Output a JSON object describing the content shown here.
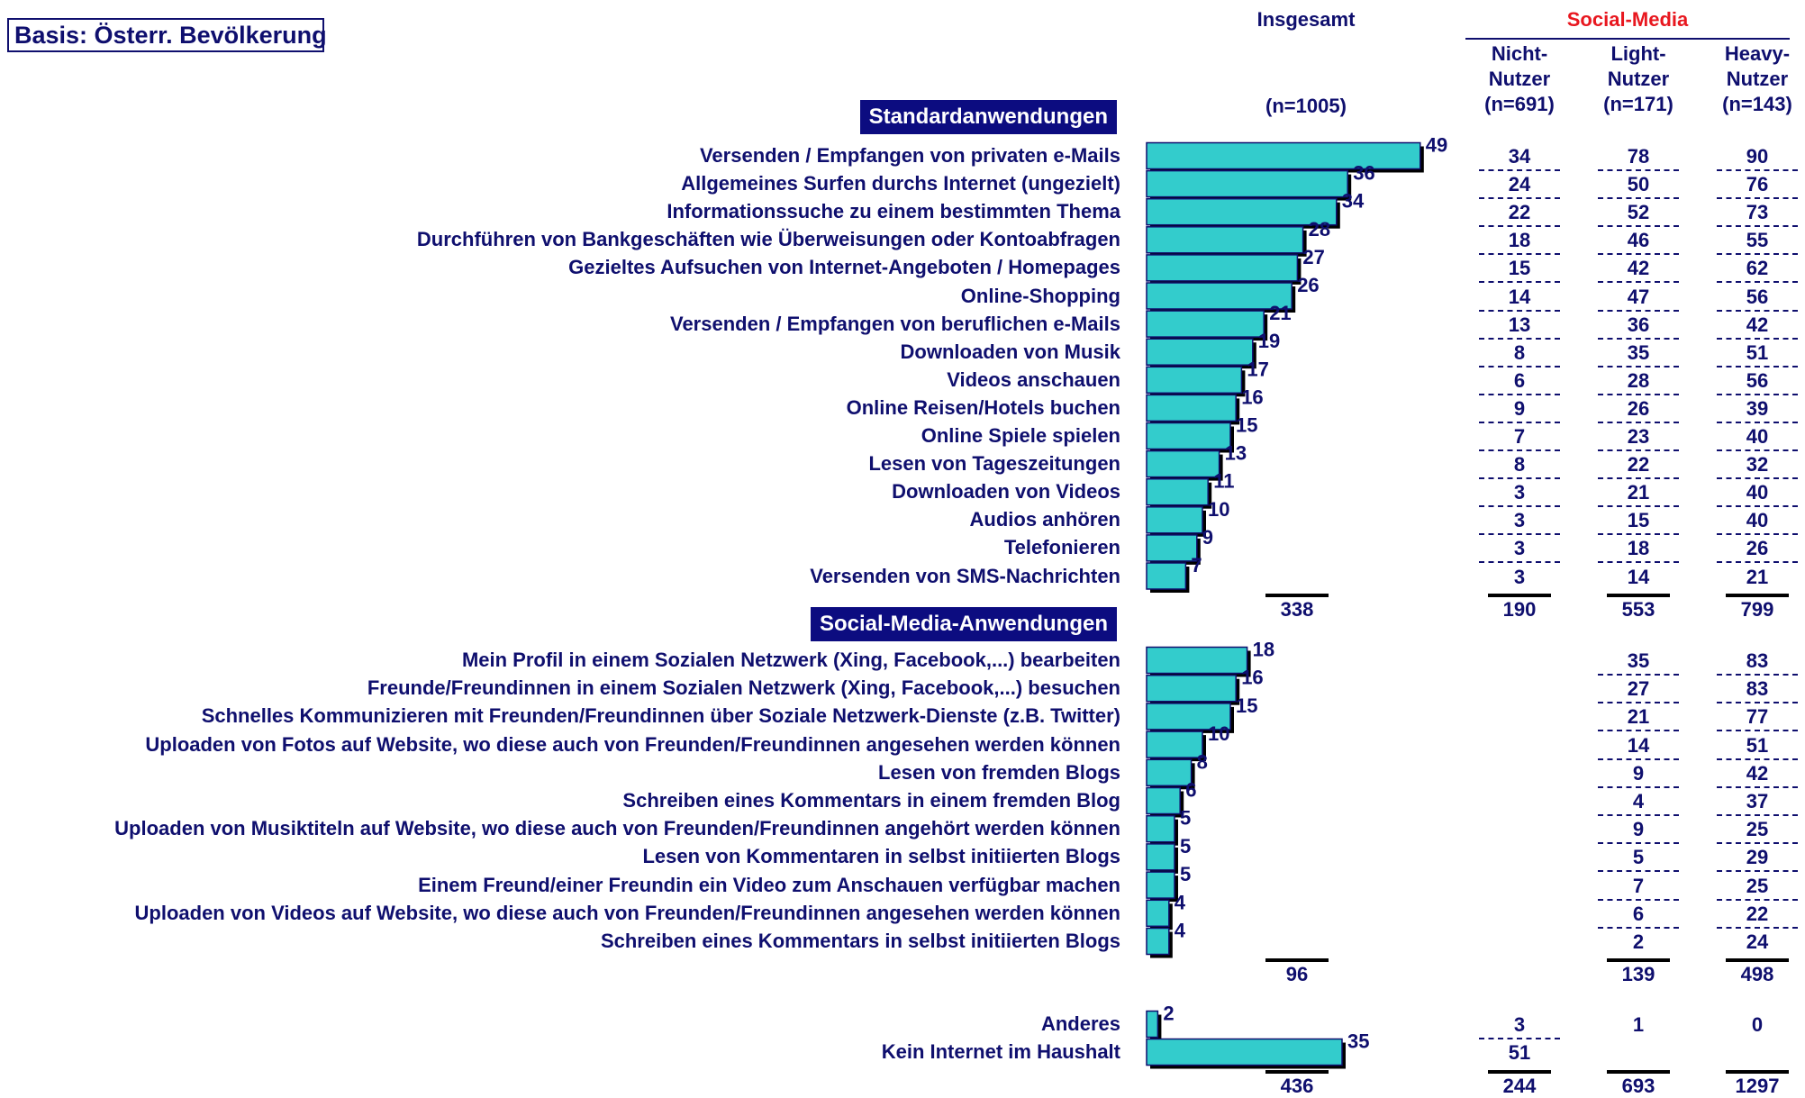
{
  "basis": "Basis: Österr. Bevölkerung",
  "headers": {
    "overall": "Insgesamt",
    "overall_n": "(n=1005)",
    "social_media": "Social-Media",
    "groups": [
      {
        "line1": "Nicht-",
        "line2": "Nutzer",
        "n": "(n=691)"
      },
      {
        "line1": "Light-",
        "line2": "Nutzer",
        "n": "(n=171)"
      },
      {
        "line1": "Heavy-",
        "line2": "Nutzer",
        "n": "(n=143)"
      }
    ]
  },
  "sections": {
    "standard": "Standardanwendungen",
    "social": "Social-Media-Anwendungen"
  },
  "colors": {
    "bar": "#33cccc",
    "text": "#0f0f6e",
    "section_bg": "#0c0c80",
    "accent": "#e8171f"
  },
  "chart_data": {
    "type": "bar",
    "orientation": "horizontal",
    "categories": [
      "Versenden / Empfangen von privaten e-Mails",
      "Allgemeines Surfen durchs Internet (ungezielt)",
      "Informationssuche zu einem bestimmten Thema",
      "Durchführen von Bankgeschäften wie Überweisungen oder Kontoabfragen",
      "Gezieltes Aufsuchen von Internet-Angeboten / Homepages",
      "Online-Shopping",
      "Versenden / Empfangen von beruflichen e-Mails",
      "Downloaden von Musik",
      "Videos anschauen",
      "Online Reisen/Hotels buchen ",
      "Online Spiele spielen",
      "Lesen von Tageszeitungen",
      "Downloaden von Videos",
      "Audios anhören",
      "Telefonieren",
      "Versenden von SMS-Nachrichten",
      "Mein Profil in einem Sozialen Netzwerk (Xing, Facebook,...) bearbeiten",
      "Freunde/Freundinnen in einem Sozialen Netzwerk (Xing, Facebook,...) besuchen",
      "Schnelles Kommunizieren mit Freunden/Freundinnen über Soziale Netzwerk-Dienste (z.B. Twitter)",
      "Uploaden von Fotos auf Website, wo diese auch von Freunden/Freundinnen angesehen werden können ",
      "Lesen von fremden Blogs",
      "Schreiben eines Kommentars in einem fremden Blog",
      "Uploaden von Musiktiteln auf Website, wo diese auch von Freunden/Freundinnen angehört werden können ",
      "Lesen von Kommentaren in selbst initiierten Blogs",
      "Einem Freund/einer Freundin ein Video zum Anschauen verfügbar machen",
      "Uploaden von Videos auf Website, wo diese auch von Freunden/Freundinnen angesehen werden können ",
      "Schreiben eines Kommentars in selbst initiierten Blogs",
      "Anderes",
      "Kein Internet im Haushalt"
    ],
    "values": [
      49,
      36,
      34,
      28,
      27,
      26,
      21,
      19,
      17,
      16,
      15,
      13,
      11,
      10,
      9,
      7,
      18,
      16,
      15,
      10,
      8,
      6,
      5,
      5,
      5,
      4,
      4,
      2,
      35
    ],
    "table": {
      "nicht": [
        "34",
        "24",
        "22",
        "18",
        "15",
        "14",
        "13",
        "8",
        "6",
        "9",
        "7",
        "8",
        "3",
        "3",
        "3",
        "3",
        "",
        "",
        "",
        "",
        "",
        "",
        "",
        "",
        "",
        "",
        "",
        "3",
        "51"
      ],
      "light": [
        "78",
        "50",
        "52",
        "46",
        "42",
        "47",
        "36",
        "35",
        "28",
        "26",
        "23",
        "22",
        "21",
        "15",
        "18",
        "14",
        "35",
        "27",
        "21",
        "14",
        "9",
        "4",
        "9",
        "5",
        "7",
        "6",
        "2",
        "1",
        ""
      ],
      "heavy": [
        "90",
        "76",
        "73",
        "55",
        "62",
        "56",
        "42",
        "51",
        "56",
        "39",
        "40",
        "32",
        "40",
        "40",
        "26",
        "21",
        "83",
        "83",
        "77",
        "51",
        "42",
        "37",
        "25",
        "29",
        "25",
        "22",
        "24",
        "0",
        ""
      ]
    },
    "totals": {
      "standard": {
        "overall": "338",
        "nicht": "190",
        "light": "553",
        "heavy": "799"
      },
      "social": {
        "overall": "96",
        "nicht": "",
        "light": "139",
        "heavy": "498"
      },
      "final": {
        "overall": "436",
        "nicht": "244",
        "light": "693",
        "heavy": "1297"
      }
    }
  }
}
